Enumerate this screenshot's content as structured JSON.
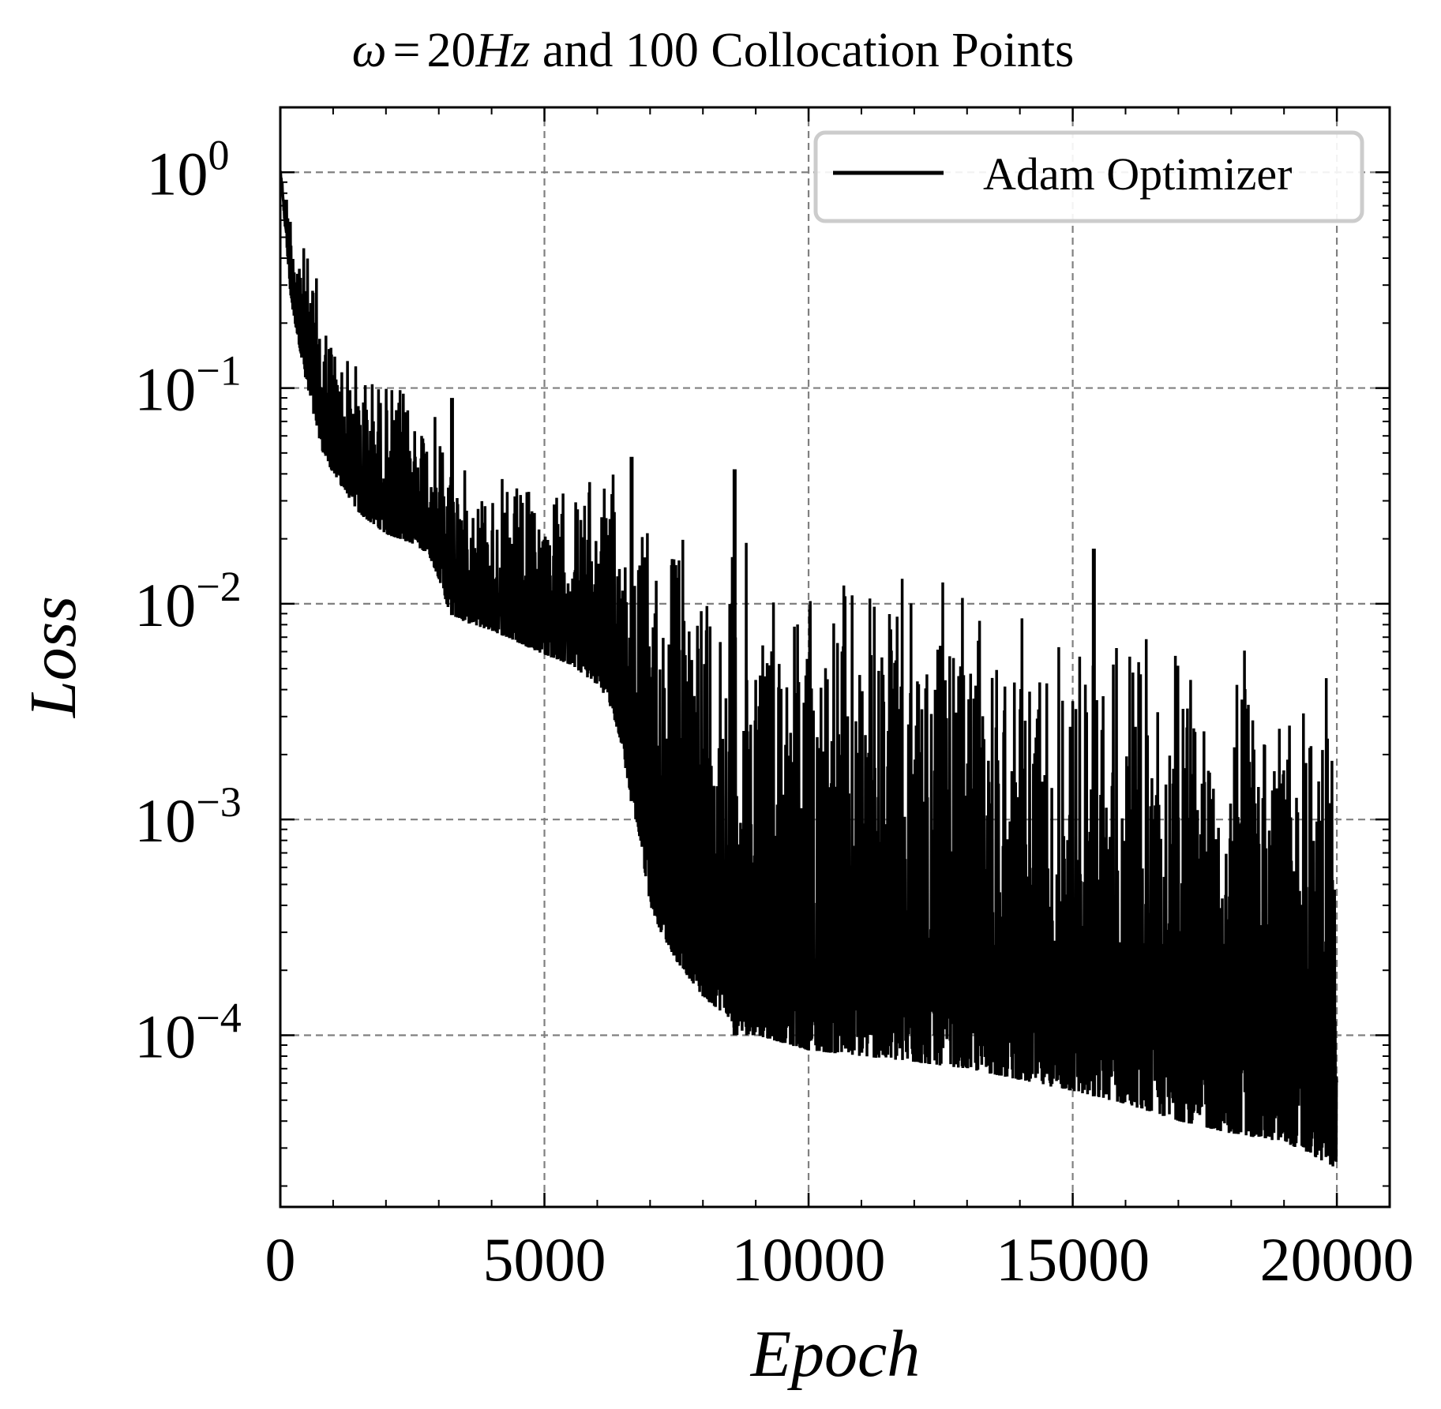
{
  "chart_data": {
    "type": "line",
    "title": {
      "symbol": "ω",
      "equals": "=",
      "value": "20",
      "unit": "Hz",
      "rest": " and 100 Collocation Points"
    },
    "xlabel": "Epoch",
    "ylabel": "Loss",
    "yscale": "log",
    "xlim": [
      0,
      21000
    ],
    "ylim": [
      1.6e-05,
      2.0
    ],
    "xticks": [
      0,
      5000,
      10000,
      15000,
      20000
    ],
    "xtick_labels": [
      "0",
      "5000",
      "10000",
      "15000",
      "20000"
    ],
    "yticks": [
      1,
      0.1,
      0.01,
      0.001,
      0.0001
    ],
    "ytick_labels": [
      {
        "base": "10",
        "exp": "0"
      },
      {
        "base": "10",
        "exp": "−1"
      },
      {
        "base": "10",
        "exp": "−2"
      },
      {
        "base": "10",
        "exp": "−3"
      },
      {
        "base": "10",
        "exp": "−4"
      }
    ],
    "grid": true,
    "legend_position": "top-right",
    "series": [
      {
        "name": "Adam Optimizer",
        "color": "#000000",
        "x_range": [
          0,
          20000
        ],
        "envelope": {
          "x": [
            0,
            200,
            500,
            800,
            1000,
            1500,
            2000,
            2500,
            2800,
            3000,
            3200,
            3500,
            4000,
            4500,
            5000,
            5500,
            6000,
            6200,
            6400,
            6600,
            6800,
            7000,
            7200,
            7500,
            8000,
            8500,
            8600,
            9000,
            10000,
            11000,
            12000,
            13000,
            14000,
            15000,
            16000,
            17000,
            18000,
            19000,
            19500,
            20000
          ],
          "lower": [
            1.0,
            0.25,
            0.1,
            0.05,
            0.04,
            0.026,
            0.021,
            0.019,
            0.017,
            0.013,
            0.009,
            0.0082,
            0.0075,
            0.0066,
            0.0058,
            0.0052,
            0.0042,
            0.0036,
            0.0025,
            0.0014,
            0.0008,
            0.0004,
            0.0003,
            0.00022,
            0.00015,
            0.00012,
            0.0001,
            0.0001,
            8.5e-05,
            8e-05,
            7.5e-05,
            7e-05,
            6.2e-05,
            5.5e-05,
            4.8e-05,
            4e-05,
            3.5e-05,
            3.2e-05,
            2.8e-05,
            2.4e-05
          ],
          "upper": [
            1.0,
            0.8,
            0.45,
            0.3,
            0.2,
            0.14,
            0.12,
            0.1,
            0.085,
            0.075,
            0.06,
            0.045,
            0.04,
            0.038,
            0.035,
            0.038,
            0.042,
            0.045,
            0.04,
            0.035,
            0.03,
            0.03,
            0.028,
            0.028,
            0.026,
            0.025,
            0.024,
            0.022,
            0.018,
            0.016,
            0.014,
            0.012,
            0.011,
            0.01,
            0.009,
            0.008,
            0.007,
            0.006,
            0.0055,
            0.005
          ]
        },
        "spikes": [
          {
            "x": 3250,
            "y": 0.09
          },
          {
            "x": 6650,
            "y": 0.048
          },
          {
            "x": 8600,
            "y": 0.042
          },
          {
            "x": 8650,
            "y": 0.0001
          },
          {
            "x": 15400,
            "y": 0.018
          }
        ]
      }
    ]
  }
}
